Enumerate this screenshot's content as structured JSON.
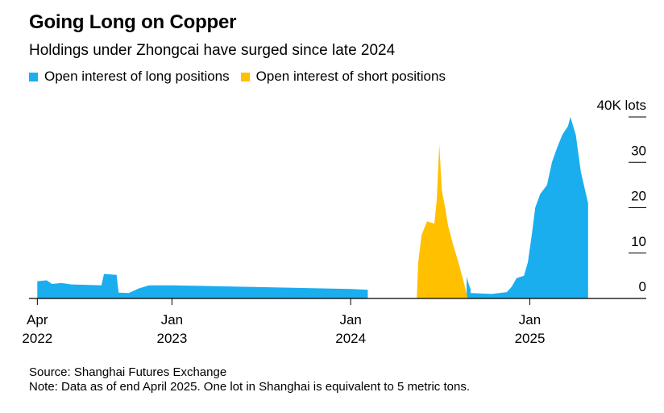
{
  "header": {
    "title": "Going Long on Copper",
    "subtitle": "Holdings under Zhongcai have surged since late 2024"
  },
  "footer": {
    "source": "Source: Shanghai Futures Exchange",
    "note": "Note: Data as of end April 2025. One lot in Shanghai is equivalent to 5 metric tons."
  },
  "chart_data": {
    "type": "area",
    "title": "Going Long on Copper",
    "subtitle": "Holdings under Zhongcai have surged since late 2024",
    "ylabel": "",
    "y_unit_label": "40K lots",
    "ylim": [
      0,
      40000
    ],
    "y_ticks": [
      0,
      10000,
      20000,
      30000,
      40000
    ],
    "y_tick_labels": [
      "0",
      "10",
      "20",
      "30",
      "40K lots"
    ],
    "xlim": [
      "2022-03-15",
      "2025-05-25"
    ],
    "x_ticks": [
      {
        "date": "2022-04-01",
        "line1": "Apr",
        "line2": "2022"
      },
      {
        "date": "2023-01-01",
        "line1": "Jan",
        "line2": "2023"
      },
      {
        "date": "2024-01-01",
        "line1": "Jan",
        "line2": "2024"
      },
      {
        "date": "2025-01-01",
        "line1": "Jan",
        "line2": "2025"
      }
    ],
    "grid": false,
    "legend_position": "top-left",
    "series": [
      {
        "name": "Open interest of long positions",
        "color": "#1aaeef",
        "points": [
          [
            "2022-04-01",
            0
          ],
          [
            "2022-04-01",
            3800
          ],
          [
            "2022-04-20",
            4000
          ],
          [
            "2022-05-01",
            3200
          ],
          [
            "2022-05-20",
            3400
          ],
          [
            "2022-06-10",
            3100
          ],
          [
            "2022-07-10",
            3000
          ],
          [
            "2022-08-10",
            2900
          ],
          [
            "2022-08-15",
            5400
          ],
          [
            "2022-09-10",
            5200
          ],
          [
            "2022-09-14",
            1300
          ],
          [
            "2022-10-05",
            1200
          ],
          [
            "2022-10-25",
            2200
          ],
          [
            "2022-11-15",
            2900
          ],
          [
            "2023-01-01",
            2900
          ],
          [
            "2024-01-01",
            2100
          ],
          [
            "2024-02-05",
            1900
          ],
          [
            "2024-02-05",
            0
          ]
        ]
      },
      {
        "name": "Open interest of long positions",
        "color": "#1aaeef",
        "points": [
          [
            "2024-08-25",
            0
          ],
          [
            "2024-08-25",
            4800
          ],
          [
            "2024-08-28",
            3500
          ],
          [
            "2024-09-02",
            2000
          ],
          [
            "2024-09-02",
            0
          ]
        ]
      },
      {
        "name": "Open interest of long positions",
        "color": "#1aaeef",
        "points": [
          [
            "2024-09-02",
            0
          ],
          [
            "2024-09-02",
            1200
          ],
          [
            "2024-10-15",
            1000
          ],
          [
            "2024-11-15",
            1400
          ],
          [
            "2024-11-25",
            2600
          ],
          [
            "2024-12-05",
            4500
          ],
          [
            "2024-12-20",
            5000
          ],
          [
            "2024-12-28",
            8000
          ],
          [
            "2025-01-05",
            14000
          ],
          [
            "2025-01-12",
            20000
          ],
          [
            "2025-01-22",
            23000
          ],
          [
            "2025-02-05",
            25000
          ],
          [
            "2025-02-15",
            30000
          ],
          [
            "2025-02-25",
            33000
          ],
          [
            "2025-03-08",
            36000
          ],
          [
            "2025-03-20",
            38000
          ],
          [
            "2025-03-25",
            40000
          ],
          [
            "2025-04-05",
            36000
          ],
          [
            "2025-04-15",
            28000
          ],
          [
            "2025-04-30",
            21000
          ],
          [
            "2025-04-30",
            0
          ]
        ]
      },
      {
        "name": "Open interest of short positions",
        "color": "#ffc000",
        "points": [
          [
            "2024-05-15",
            0
          ],
          [
            "2024-05-18",
            8000
          ],
          [
            "2024-05-25",
            14000
          ],
          [
            "2024-06-05",
            17000
          ],
          [
            "2024-06-20",
            16500
          ],
          [
            "2024-06-25",
            22000
          ],
          [
            "2024-06-30",
            34000
          ],
          [
            "2024-07-05",
            24000
          ],
          [
            "2024-07-12",
            20000
          ],
          [
            "2024-07-18",
            16000
          ],
          [
            "2024-07-28",
            12000
          ],
          [
            "2024-08-08",
            8000
          ],
          [
            "2024-08-18",
            4000
          ],
          [
            "2024-08-25",
            1000
          ],
          [
            "2024-08-27",
            0
          ]
        ]
      }
    ]
  }
}
